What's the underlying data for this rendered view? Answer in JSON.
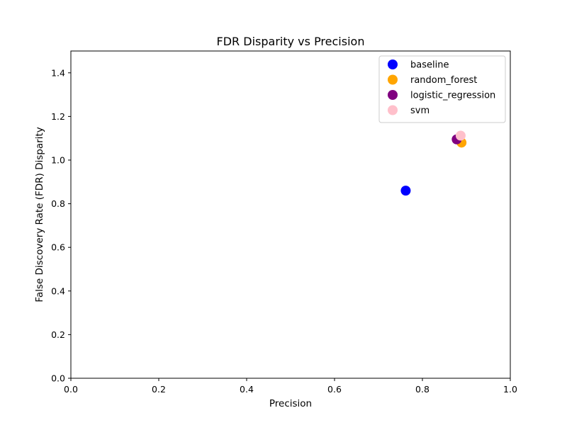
{
  "chart_data": {
    "type": "scatter",
    "title": "FDR Disparity vs Precision",
    "xlabel": "Precision",
    "ylabel": "False Discovery Rate (FDR) Disparity",
    "xlim": [
      0.0,
      1.0
    ],
    "ylim": [
      0.0,
      1.5
    ],
    "xticks": [
      "0.0",
      "0.2",
      "0.4",
      "0.6",
      "0.8",
      "1.0"
    ],
    "yticks": [
      "0.0",
      "0.2",
      "0.4",
      "0.6",
      "0.8",
      "1.0",
      "1.2",
      "1.4"
    ],
    "grid": false,
    "legend_position": "top-right",
    "series": [
      {
        "name": "baseline",
        "color": "#0000ff",
        "x": [
          0.762
        ],
        "y": [
          0.86
        ]
      },
      {
        "name": "random_forest",
        "color": "#ffa500",
        "x": [
          0.889
        ],
        "y": [
          1.08
        ]
      },
      {
        "name": "logistic_regression",
        "color": "#800080",
        "x": [
          0.878
        ],
        "y": [
          1.095
        ]
      },
      {
        "name": "svm",
        "color": "#ffc0cb",
        "x": [
          0.887
        ],
        "y": [
          1.112
        ]
      }
    ]
  }
}
